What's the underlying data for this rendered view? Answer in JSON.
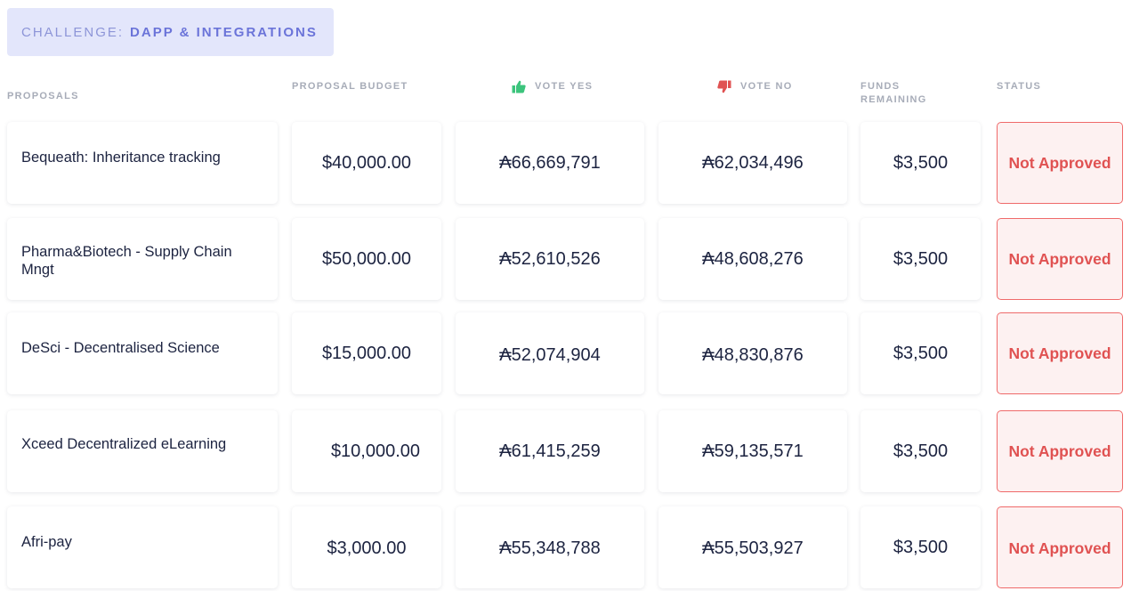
{
  "challenge": {
    "prefix": "CHALLENGE:",
    "name": "DAPP & INTEGRATIONS"
  },
  "columns": {
    "proposals": "PROPOSALS",
    "budget": "PROPOSAL BUDGET",
    "vote_yes": "VOTE YES",
    "vote_no": "VOTE NO",
    "funds_remaining": "FUNDS REMAINING",
    "status": "STATUS"
  },
  "icons": {
    "vote_yes": "thumbs-up-icon",
    "vote_no": "thumbs-down-icon"
  },
  "colors": {
    "accent": "#6b74d9",
    "yes": "#3cc47c",
    "no": "#e05252",
    "status_border": "#ef6a6a"
  },
  "rows": [
    {
      "proposal": "Bequeath: Inheritance tracking",
      "budget": "$40,000.00",
      "vote_yes": "₳66,669,791",
      "vote_no": "₳62,034,496",
      "funds_remaining": "$3,500",
      "status": "Not Approved"
    },
    {
      "proposal": "Pharma&Biotech - Supply Chain Mngt",
      "budget": "$50,000.00",
      "vote_yes": "₳52,610,526",
      "vote_no": "₳48,608,276",
      "funds_remaining": "$3,500",
      "status": "Not Approved"
    },
    {
      "proposal": "DeSci - Decentralised Science",
      "budget": "$15,000.00",
      "vote_yes": "₳52,074,904",
      "vote_no": "₳48,830,876",
      "funds_remaining": "$3,500",
      "status": "Not Approved"
    },
    {
      "proposal": "Xceed Decentralized eLearning",
      "budget": "$10,000.00",
      "vote_yes": "₳61,415,259",
      "vote_no": "₳59,135,571",
      "funds_remaining": "$3,500",
      "status": "Not Approved"
    },
    {
      "proposal": "Afri-pay",
      "budget": "$3,000.00",
      "vote_yes": "₳55,348,788",
      "vote_no": "₳55,503,927",
      "funds_remaining": "$3,500",
      "status": "Not Approved"
    }
  ]
}
